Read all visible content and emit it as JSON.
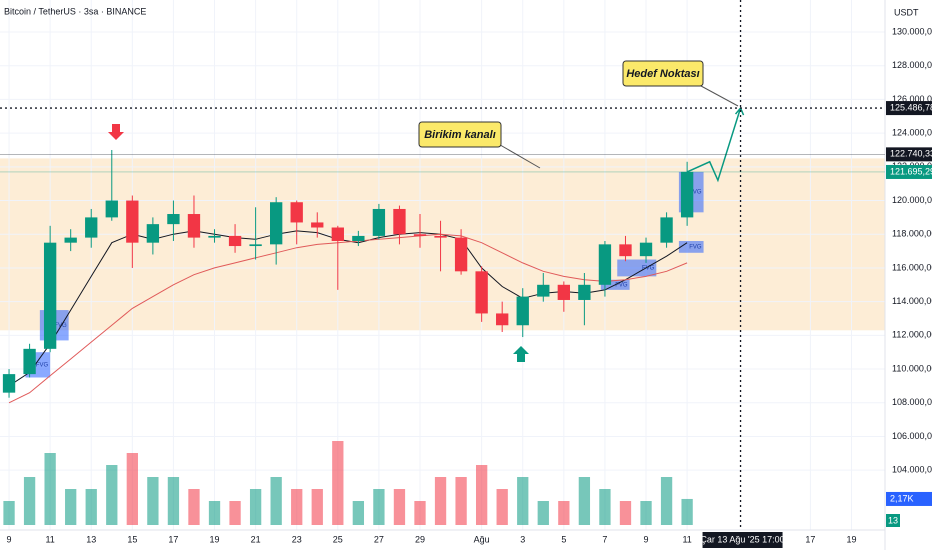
{
  "chart_data": {
    "type": "candlestick",
    "title": "Bitcoin / TetherUS · 3sa · BINANCE",
    "currency": "USDT",
    "x": [
      0,
      1,
      2,
      3,
      4,
      5,
      6,
      7,
      8,
      9,
      10,
      11,
      12,
      13,
      14,
      15,
      16,
      17,
      18,
      19,
      20,
      21,
      22,
      23,
      24,
      25,
      26,
      27,
      28,
      29,
      30,
      31,
      32,
      33
    ],
    "open": [
      108600,
      109700,
      111200,
      117500,
      117800,
      119000,
      120000,
      117500,
      118600,
      119200,
      117800,
      117900,
      117300,
      117400,
      119900,
      118700,
      118400,
      117600,
      117900,
      119500,
      118000,
      117900,
      117800,
      115800,
      113300,
      112600,
      114300,
      115000,
      114100,
      115000,
      117400,
      116700,
      117500,
      119000
    ],
    "high": [
      110000,
      111500,
      118500,
      118300,
      119500,
      123000,
      120300,
      119000,
      120000,
      120300,
      118300,
      118600,
      119600,
      120200,
      120000,
      119300,
      118500,
      118200,
      119800,
      119700,
      119200,
      118800,
      118300,
      116100,
      114000,
      114800,
      115700,
      115200,
      115700,
      117600,
      117900,
      117800,
      119300,
      122300
    ],
    "low": [
      108300,
      109500,
      111000,
      117000,
      117200,
      118800,
      116000,
      116800,
      117600,
      117200,
      117500,
      116900,
      116500,
      116200,
      117400,
      117800,
      114700,
      117300,
      117700,
      117400,
      117200,
      115800,
      115600,
      112800,
      112200,
      111900,
      114000,
      113400,
      112600,
      114300,
      116400,
      116300,
      117200,
      118500
    ],
    "close": [
      109700,
      111200,
      117500,
      117800,
      119000,
      120000,
      117500,
      118600,
      119200,
      117800,
      117900,
      117300,
      117400,
      119900,
      118700,
      118400,
      117600,
      117900,
      119500,
      118000,
      117900,
      117800,
      115800,
      113300,
      112600,
      114300,
      115000,
      114100,
      115000,
      117400,
      116700,
      117500,
      119000,
      121700
    ],
    "up_color": "#089981",
    "down_color": "#f23645",
    "volume": {
      "values": [
        2,
        4,
        6,
        3,
        3,
        5,
        6,
        4,
        4,
        3,
        2,
        2,
        3,
        4,
        3,
        3,
        7,
        2,
        3,
        3,
        2,
        4,
        4,
        5,
        3,
        4,
        2,
        2,
        4,
        3,
        2,
        2,
        4,
        2.17
      ],
      "vlim": [
        0,
        10
      ],
      "last_label": "2,17K",
      "color": "#2962ff"
    },
    "counter": "13",
    "overlays": [
      {
        "color": "#131722",
        "values": [
          109000,
          109800,
          111500,
          113500,
          115500,
          117500,
          118000,
          117700,
          118000,
          118200,
          118000,
          117800,
          117700,
          118000,
          118200,
          118100,
          117700,
          117500,
          117800,
          118000,
          118100,
          118000,
          117700,
          116000,
          114900,
          114200,
          114500,
          114600,
          114500,
          114700,
          115300,
          116000,
          116700,
          117500
        ]
      },
      {
        "color": "#e05a5a",
        "values": [
          108000,
          108600,
          109600,
          110600,
          111600,
          112600,
          113600,
          114300,
          115000,
          115600,
          116000,
          116300,
          116600,
          116900,
          117200,
          117400,
          117500,
          117600,
          117700,
          117800,
          117900,
          118000,
          117900,
          117500,
          116900,
          116300,
          115800,
          115500,
          115300,
          115200,
          115300,
          115500,
          115800,
          116300
        ]
      }
    ],
    "zone": {
      "range": [
        112300,
        122500
      ],
      "color": "#fde9cc"
    },
    "fvg": [
      {
        "x": [
          0.8,
          2.0
        ],
        "range": [
          109500,
          111000
        ],
        "label": "FVG"
      },
      {
        "x": [
          1.5,
          2.9
        ],
        "range": [
          111700,
          113500
        ],
        "label": "FVG"
      },
      {
        "x": [
          28.8,
          30.2
        ],
        "range": [
          114700,
          115300
        ],
        "label": "FVG"
      },
      {
        "x": [
          29.6,
          31.5
        ],
        "range": [
          115500,
          116500
        ],
        "label": "FVG"
      },
      {
        "x": [
          32.6,
          33.8
        ],
        "range": [
          119300,
          121700
        ],
        "label": "FVG"
      },
      {
        "x": [
          32.6,
          33.8
        ],
        "range": [
          116900,
          117600
        ],
        "label": "FVG"
      }
    ],
    "projection": {
      "color": "#089981",
      "x": [
        33,
        34.1,
        34.5,
        35.6
      ],
      "values": [
        121700,
        122300,
        121200,
        125486.78
      ]
    },
    "price_markers": [
      {
        "value": 122740.33,
        "label": "122.740,33",
        "color": "#131722"
      },
      {
        "value": 121695.29,
        "label": "121.695,29",
        "color": "#089981"
      }
    ],
    "target": {
      "value": 125486.78,
      "label": "125.486,78"
    },
    "crosshair": {
      "x": 35.6,
      "label": "Çar 13 Ağu '25   17:00"
    },
    "annotations": [
      "Birikim kanalı",
      "Hedef Noktası"
    ],
    "xlim": [
      -0.44,
      42.63
    ],
    "xticks": [
      {
        "value": 0,
        "label": "9"
      },
      {
        "value": 2,
        "label": "11"
      },
      {
        "value": 4,
        "label": "13"
      },
      {
        "value": 6,
        "label": "15"
      },
      {
        "value": 8,
        "label": "17"
      },
      {
        "value": 10,
        "label": "19"
      },
      {
        "value": 12,
        "label": "21"
      },
      {
        "value": 14,
        "label": "23"
      },
      {
        "value": 16,
        "label": "25"
      },
      {
        "value": 18,
        "label": "27"
      },
      {
        "value": 20,
        "label": "29"
      },
      {
        "value": 23,
        "label": "Ağu"
      },
      {
        "value": 25,
        "label": "3"
      },
      {
        "value": 27,
        "label": "5"
      },
      {
        "value": 29,
        "label": "7"
      },
      {
        "value": 31,
        "label": "9"
      },
      {
        "value": 33,
        "label": "11"
      },
      {
        "value": 39,
        "label": "17"
      },
      {
        "value": 41,
        "label": "19"
      }
    ],
    "ylim": [
      100450,
      131900
    ],
    "yticks": [
      {
        "value": 104000,
        "label": "104.000,00"
      },
      {
        "value": 106000,
        "label": "106.000,00"
      },
      {
        "value": 108000,
        "label": "108.000,00"
      },
      {
        "value": 110000,
        "label": "110.000,00"
      },
      {
        "value": 112000,
        "label": "112.000,00"
      },
      {
        "value": 114000,
        "label": "114.000,00"
      },
      {
        "value": 116000,
        "label": "116.000,00"
      },
      {
        "value": 118000,
        "label": "118.000,00"
      },
      {
        "value": 120000,
        "label": "120.000,00"
      },
      {
        "value": 122000,
        "label": "122.000,00"
      },
      {
        "value": 124000,
        "label": "124.000,00"
      },
      {
        "value": 126000,
        "label": "126.000,00"
      },
      {
        "value": 128000,
        "label": "128.000,00"
      },
      {
        "value": 130000,
        "label": "130.000,00"
      }
    ],
    "grid": true
  }
}
